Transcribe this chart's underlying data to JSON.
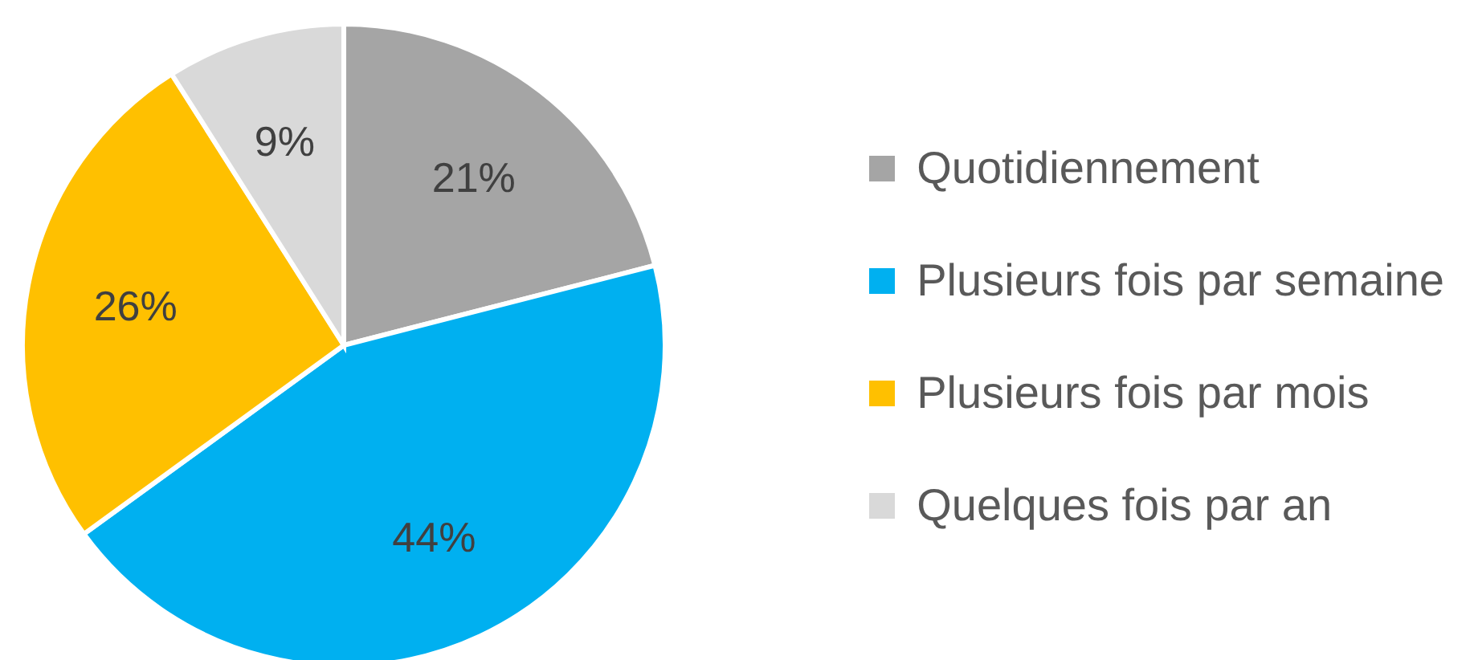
{
  "chart_data": {
    "type": "pie",
    "categories": [
      "Quotidiennement",
      "Plusieurs fois par semaine",
      "Plusieurs fois par mois",
      "Quelques fois par an"
    ],
    "values": [
      21,
      44,
      26,
      9
    ],
    "value_labels": [
      "21%",
      "44%",
      "26%",
      "9%"
    ],
    "colors": [
      "#a5a5a5",
      "#00b0f0",
      "#ffc000",
      "#d9d9d9"
    ],
    "legend": "right"
  }
}
